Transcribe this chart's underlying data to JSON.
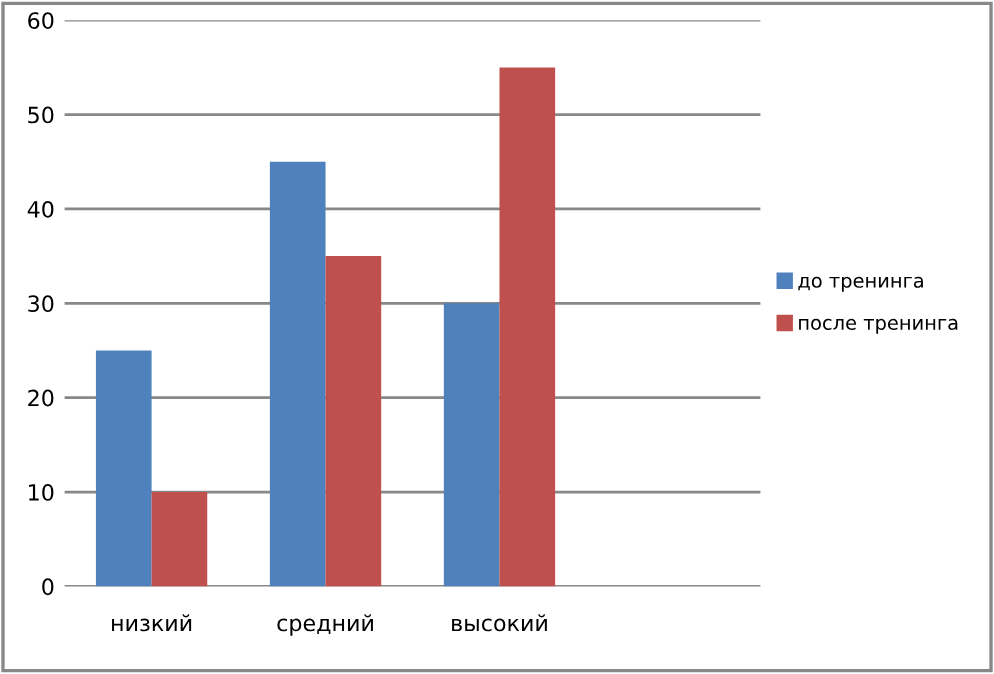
{
  "chart_data": {
    "type": "bar",
    "categories": [
      "низкий",
      "средний",
      "высокий",
      null
    ],
    "series": [
      {
        "name": "до тренинга",
        "color": "#4f81bd",
        "values": [
          25,
          45,
          30,
          null
        ]
      },
      {
        "name": "после тренинга",
        "color": "#c0504d",
        "values": [
          10,
          35,
          55,
          null
        ]
      }
    ],
    "ylim": [
      0,
      60
    ],
    "yticks": [
      0,
      10,
      20,
      30,
      40,
      50,
      60
    ],
    "grid": "y",
    "legend": "right"
  }
}
